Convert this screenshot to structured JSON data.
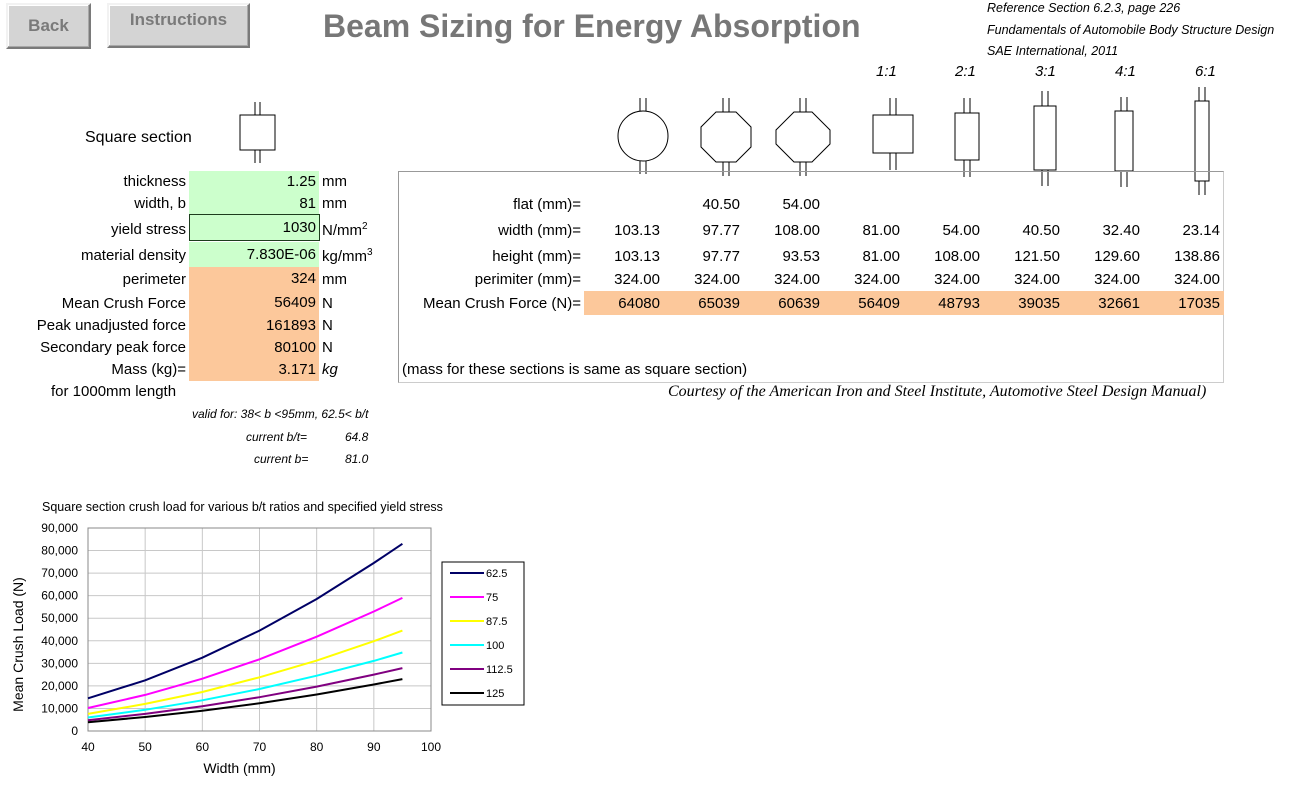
{
  "header": {
    "back_label": "Back",
    "instructions_label": "Instructions",
    "title": "Beam Sizing for Energy Absorption",
    "reference_lines": [
      "Reference Section 6.2.3, page 226",
      "Fundamentals of Automobile Body Structure Design",
      "SAE International, 2011"
    ]
  },
  "section": {
    "label": "Square section"
  },
  "inputs": [
    {
      "label": "thickness",
      "value": "1.25",
      "unit": "mm"
    },
    {
      "label": "width, b",
      "value": "81",
      "unit": "mm"
    },
    {
      "label": "yield stress",
      "value": "1030",
      "unit": "N/mm",
      "sup": "2"
    },
    {
      "label": "material density",
      "value": "7.830E-06",
      "unit": "kg/mm",
      "sup": "3"
    }
  ],
  "outputs": [
    {
      "label": "perimeter",
      "value": "324",
      "unit": "mm"
    },
    {
      "label": "Mean Crush Force",
      "value": "56409",
      "unit": "N"
    },
    {
      "label": "Peak unadjusted force",
      "value": "161893",
      "unit": "N"
    },
    {
      "label": "Secondary peak force",
      "value": "80100",
      "unit": "N"
    },
    {
      "label": "Mass (kg)=",
      "value": "3.171",
      "unit": "kg"
    }
  ],
  "length_note": "for 1000mm length",
  "validity": {
    "valid_for": "valid for: 38< b <95mm,  62.5< b/t",
    "bt_label": "current b/t=",
    "bt_value": "64.8",
    "b_label": "current b=",
    "b_value": "81.0"
  },
  "ratios": [
    "1:1",
    "2:1",
    "3:1",
    "4:1",
    "6:1"
  ],
  "comparison": {
    "row_labels": [
      "flat (mm)=",
      "width (mm)=",
      "height (mm)=",
      "perimiter (mm)=",
      "Mean Crush Force (N)="
    ],
    "flat": [
      "",
      "40.50",
      "54.00",
      "",
      "",
      "",
      "",
      ""
    ],
    "width": [
      "103.13",
      "97.77",
      "108.00",
      "81.00",
      "54.00",
      "40.50",
      "32.40",
      "23.14"
    ],
    "height": [
      "103.13",
      "97.77",
      "93.53",
      "81.00",
      "108.00",
      "121.50",
      "129.60",
      "138.86"
    ],
    "perimeter": [
      "324.00",
      "324.00",
      "324.00",
      "324.00",
      "324.00",
      "324.00",
      "324.00",
      "324.00"
    ],
    "crush": [
      "64080",
      "65039",
      "60639",
      "56409",
      "48793",
      "39035",
      "32661",
      "17035"
    ],
    "mass_note": "(mass for these sections is same as square section)",
    "courtesy": "Courtesy of the American Iron and Steel Institute, Automotive Steel Design Manual)"
  },
  "colors": {
    "input_bg": "#ccffcc",
    "output_bg": "#fcc89b",
    "title": "#777777"
  },
  "chart_data": {
    "type": "line",
    "title": "Square section crush load for various b/t ratios and specified yield stress",
    "xlabel": "Width (mm)",
    "ylabel": "Mean Crush Load (N)",
    "xlim": [
      40,
      100
    ],
    "ylim": [
      0,
      90000
    ],
    "x_ticks": [
      "40",
      "50",
      "60",
      "70",
      "80",
      "90",
      "100"
    ],
    "y_ticks": [
      "0",
      "10,000",
      "20,000",
      "30,000",
      "40,000",
      "50,000",
      "60,000",
      "70,000",
      "80,000",
      "90,000"
    ],
    "grid": true,
    "legend_position": "right",
    "x": [
      40,
      50,
      60,
      70,
      80,
      90,
      95
    ],
    "series": [
      {
        "name": "62.5",
        "color": "#000066",
        "values": [
          14500,
          22500,
          32500,
          44500,
          58500,
          74500,
          83000
        ]
      },
      {
        "name": "75",
        "color": "#ff00ff",
        "values": [
          10200,
          16000,
          23200,
          31800,
          41800,
          53000,
          59000
        ]
      },
      {
        "name": "87.5",
        "color": "#ffff00",
        "values": [
          7600,
          12000,
          17300,
          23800,
          31200,
          39800,
          44500
        ]
      },
      {
        "name": "100",
        "color": "#00ffff",
        "values": [
          6000,
          9400,
          13600,
          18600,
          24500,
          31100,
          34800
        ]
      },
      {
        "name": "112.5",
        "color": "#800080",
        "values": [
          4800,
          7600,
          11000,
          15000,
          19700,
          25000,
          27900
        ]
      },
      {
        "name": "125",
        "color": "#000000",
        "values": [
          3900,
          6200,
          9000,
          12300,
          16200,
          20600,
          23000
        ]
      }
    ]
  }
}
